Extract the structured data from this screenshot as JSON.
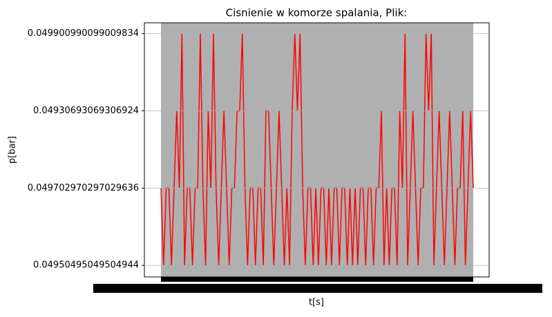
{
  "chart_data": {
    "type": "line",
    "title": "Cisnienie w komorze spalania, Plik:",
    "xlabel": "t[s]",
    "ylabel": "p[bar]",
    "ylim": [
      -0.15,
      3.14
    ],
    "yticks": [
      {
        "value": 0,
        "label": "0.04950495049504944"
      },
      {
        "value": 1,
        "label": "0.049702970297029636"
      },
      {
        "value": 2,
        "label": "0.04930693069306924"
      },
      {
        "value": 3,
        "label": "0.049900990099009834"
      }
    ],
    "color": "#ff0000",
    "grid": true,
    "values": [
      1,
      0,
      1,
      1,
      0,
      1,
      2,
      1,
      3,
      0,
      1,
      1,
      0,
      1,
      1,
      3,
      1,
      0,
      2,
      1,
      3,
      1,
      0,
      1,
      2,
      1,
      0,
      1,
      1,
      2,
      2,
      3,
      1,
      0,
      1,
      1,
      0,
      1,
      1,
      0,
      2,
      2,
      1,
      0,
      1,
      2,
      1,
      0,
      1,
      0,
      2,
      3,
      2,
      3,
      1,
      0,
      1,
      1,
      0,
      1,
      0,
      1,
      1,
      0,
      1,
      0,
      1,
      1,
      0,
      1,
      1,
      0,
      1,
      0,
      1,
      0,
      1,
      1,
      0,
      1,
      1,
      0,
      1,
      1,
      2,
      0,
      1,
      0,
      1,
      1,
      0,
      2,
      1,
      3,
      0,
      1,
      2,
      1,
      0,
      1,
      1,
      3,
      2,
      3,
      0,
      1,
      2,
      1,
      0,
      1,
      2,
      1,
      0,
      1,
      1,
      2,
      0,
      1,
      2,
      1
    ]
  }
}
